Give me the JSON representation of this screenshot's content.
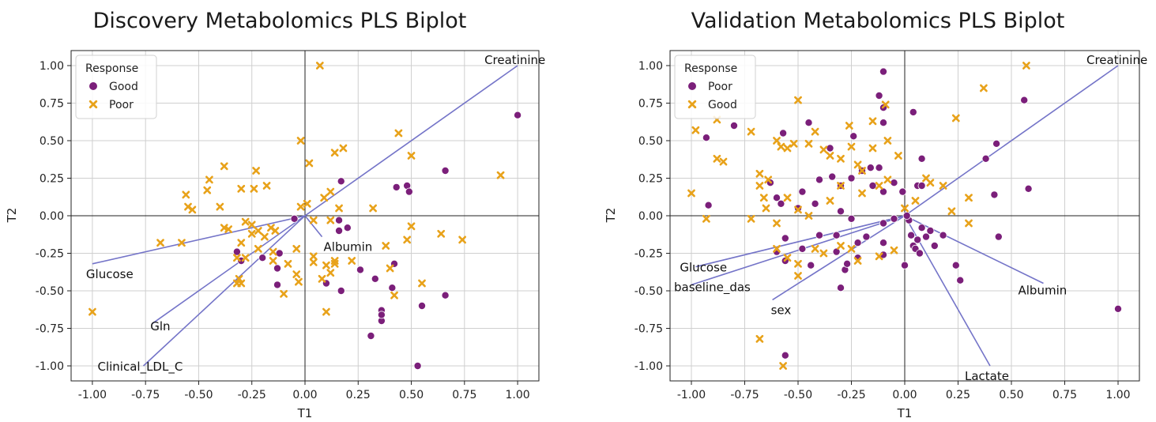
{
  "chart_data": [
    {
      "type": "scatter",
      "title": "Discovery Metabolomics PLS Biplot",
      "xlabel": "T1",
      "ylabel": "T2",
      "xlim": [
        -1.1,
        1.1
      ],
      "ylim": [
        -1.1,
        1.1
      ],
      "xticks": [
        "-1.00",
        "-0.75",
        "-0.50",
        "-0.25",
        "0.00",
        "0.25",
        "0.50",
        "0.75",
        "1.00"
      ],
      "yticks": [
        "1.00",
        "0.75",
        "0.50",
        "0.25",
        "0.00",
        "-0.25",
        "-0.50",
        "-0.75",
        "-1.00"
      ],
      "grid": true,
      "legend": {
        "title": "Response",
        "position": "top-left"
      },
      "series": [
        {
          "name": "Good",
          "color": "#7b1f7a",
          "marker": "circle",
          "points": [
            [
              1.0,
              0.67
            ],
            [
              0.66,
              0.3
            ],
            [
              0.43,
              0.19
            ],
            [
              0.48,
              0.2
            ],
            [
              0.49,
              0.16
            ],
            [
              0.17,
              0.23
            ],
            [
              0.16,
              -0.03
            ],
            [
              0.2,
              -0.08
            ],
            [
              0.16,
              -0.1
            ],
            [
              -0.05,
              -0.02
            ],
            [
              -0.12,
              -0.25
            ],
            [
              -0.32,
              -0.24
            ],
            [
              -0.3,
              -0.3
            ],
            [
              -0.2,
              -0.28
            ],
            [
              -0.13,
              -0.35
            ],
            [
              -0.13,
              -0.46
            ],
            [
              0.1,
              -0.45
            ],
            [
              0.17,
              -0.5
            ],
            [
              0.26,
              -0.36
            ],
            [
              0.33,
              -0.42
            ],
            [
              0.42,
              -0.32
            ],
            [
              0.41,
              -0.48
            ],
            [
              0.36,
              -0.63
            ],
            [
              0.36,
              -0.7
            ],
            [
              0.36,
              -0.66
            ],
            [
              0.31,
              -0.8
            ],
            [
              0.55,
              -0.6
            ],
            [
              0.53,
              -1.0
            ],
            [
              0.66,
              -0.53
            ]
          ]
        },
        {
          "name": "Poor",
          "color": "#e8a21a",
          "marker": "x",
          "points": [
            [
              0.07,
              1.0
            ],
            [
              0.92,
              0.27
            ],
            [
              0.44,
              0.55
            ],
            [
              0.5,
              0.4
            ],
            [
              -0.02,
              0.5
            ],
            [
              0.18,
              0.45
            ],
            [
              0.14,
              0.42
            ],
            [
              0.02,
              0.35
            ],
            [
              -0.38,
              0.33
            ],
            [
              -0.23,
              0.3
            ],
            [
              -0.18,
              0.2
            ],
            [
              -0.24,
              0.18
            ],
            [
              -0.56,
              0.14
            ],
            [
              -0.45,
              0.24
            ],
            [
              -0.46,
              0.17
            ],
            [
              -0.55,
              0.06
            ],
            [
              -0.53,
              0.04
            ],
            [
              -0.4,
              0.06
            ],
            [
              -0.3,
              0.18
            ],
            [
              0.09,
              0.12
            ],
            [
              0.12,
              0.16
            ],
            [
              0.01,
              0.08
            ],
            [
              -0.02,
              0.06
            ],
            [
              0.16,
              0.05
            ],
            [
              0.32,
              0.05
            ],
            [
              0.04,
              -0.03
            ],
            [
              0.12,
              -0.03
            ],
            [
              -0.28,
              -0.04
            ],
            [
              -0.38,
              -0.08
            ],
            [
              -0.36,
              -0.09
            ],
            [
              -0.25,
              -0.06
            ],
            [
              -0.22,
              -0.1
            ],
            [
              -0.25,
              -0.12
            ],
            [
              -0.19,
              -0.14
            ],
            [
              -0.14,
              -0.1
            ],
            [
              -0.16,
              -0.08
            ],
            [
              -0.3,
              -0.18
            ],
            [
              -0.22,
              -0.22
            ],
            [
              -0.28,
              -0.28
            ],
            [
              -0.32,
              -0.28
            ],
            [
              -0.58,
              -0.18
            ],
            [
              -0.68,
              -0.18
            ],
            [
              -0.15,
              -0.24
            ],
            [
              -0.15,
              -0.3
            ],
            [
              -0.08,
              -0.32
            ],
            [
              -0.04,
              -0.22
            ],
            [
              0.04,
              -0.27
            ],
            [
              0.04,
              -0.31
            ],
            [
              0.14,
              -0.3
            ],
            [
              0.14,
              -0.32
            ],
            [
              0.1,
              -0.33
            ],
            [
              0.22,
              -0.3
            ],
            [
              0.5,
              -0.07
            ],
            [
              0.48,
              -0.16
            ],
            [
              0.64,
              -0.12
            ],
            [
              0.74,
              -0.16
            ],
            [
              0.38,
              -0.2
            ],
            [
              0.4,
              -0.35
            ],
            [
              0.55,
              -0.45
            ],
            [
              0.42,
              -0.53
            ],
            [
              -0.31,
              -0.42
            ],
            [
              -0.3,
              -0.45
            ],
            [
              -0.32,
              -0.45
            ],
            [
              -0.1,
              -0.52
            ],
            [
              -0.04,
              -0.39
            ],
            [
              -0.03,
              -0.44
            ],
            [
              0.08,
              -0.42
            ],
            [
              0.12,
              -0.38
            ],
            [
              0.1,
              -0.64
            ],
            [
              -1.0,
              -0.64
            ]
          ]
        }
      ],
      "loadings": [
        {
          "label": "Creatinine",
          "x": 1.0,
          "y": 1.0
        },
        {
          "label": "Glucose",
          "x": -1.0,
          "y": -0.32
        },
        {
          "label": "Gln",
          "x": -0.72,
          "y": -0.72
        },
        {
          "label": "Clinical_LDL_C",
          "x": -0.76,
          "y": -1.0
        },
        {
          "label": "Albumin",
          "x": 0.08,
          "y": -0.14
        }
      ]
    },
    {
      "type": "scatter",
      "title": "Validation Metabolomics PLS Biplot",
      "xlabel": "T1",
      "ylabel": "T2",
      "xlim": [
        -1.1,
        1.1
      ],
      "ylim": [
        -1.1,
        1.1
      ],
      "xticks": [
        "-1.00",
        "-0.75",
        "-0.50",
        "-0.25",
        "0.00",
        "0.25",
        "0.50",
        "0.75",
        "1.00"
      ],
      "yticks": [
        "1.00",
        "0.75",
        "0.50",
        "0.25",
        "0.00",
        "-0.25",
        "-0.50",
        "-0.75",
        "-1.00"
      ],
      "grid": true,
      "legend": {
        "title": "Response",
        "position": "top-left"
      },
      "series": [
        {
          "name": "Poor",
          "color": "#7b1f7a",
          "marker": "circle",
          "points": [
            [
              -0.8,
              0.6
            ],
            [
              -0.93,
              0.52
            ],
            [
              -0.92,
              0.07
            ],
            [
              -0.57,
              0.55
            ],
            [
              -0.45,
              0.62
            ],
            [
              -0.35,
              0.45
            ],
            [
              -0.24,
              0.53
            ],
            [
              -0.1,
              0.96
            ],
            [
              -0.12,
              0.8
            ],
            [
              -0.1,
              0.72
            ],
            [
              -0.1,
              0.62
            ],
            [
              -0.16,
              0.32
            ],
            [
              -0.12,
              0.32
            ],
            [
              -0.2,
              0.3
            ],
            [
              -0.25,
              0.25
            ],
            [
              -0.34,
              0.26
            ],
            [
              -0.4,
              0.24
            ],
            [
              -0.3,
              0.2
            ],
            [
              -0.15,
              0.2
            ],
            [
              -0.1,
              0.16
            ],
            [
              -0.05,
              0.22
            ],
            [
              -0.01,
              0.16
            ],
            [
              0.06,
              0.2
            ],
            [
              0.08,
              0.2
            ],
            [
              0.08,
              0.38
            ],
            [
              0.04,
              0.69
            ],
            [
              -0.63,
              0.22
            ],
            [
              -0.6,
              0.12
            ],
            [
              -0.58,
              0.08
            ],
            [
              -0.5,
              0.05
            ],
            [
              -0.48,
              0.16
            ],
            [
              -0.42,
              0.08
            ],
            [
              -0.3,
              0.03
            ],
            [
              -0.25,
              -0.02
            ],
            [
              -0.1,
              -0.05
            ],
            [
              -0.05,
              -0.02
            ],
            [
              0.02,
              -0.03
            ],
            [
              0.08,
              -0.08
            ],
            [
              0.12,
              -0.1
            ],
            [
              0.1,
              -0.14
            ],
            [
              0.03,
              -0.13
            ],
            [
              0.06,
              -0.16
            ],
            [
              0.04,
              -0.2
            ],
            [
              0.05,
              -0.22
            ],
            [
              -0.1,
              -0.18
            ],
            [
              -0.18,
              -0.14
            ],
            [
              -0.22,
              -0.18
            ],
            [
              -0.32,
              -0.13
            ],
            [
              -0.4,
              -0.13
            ],
            [
              -0.48,
              -0.22
            ],
            [
              -0.56,
              -0.15
            ],
            [
              -0.6,
              -0.24
            ],
            [
              -0.56,
              -0.3
            ],
            [
              -0.44,
              -0.33
            ],
            [
              -0.32,
              -0.24
            ],
            [
              -0.28,
              -0.36
            ],
            [
              -0.27,
              -0.32
            ],
            [
              -0.3,
              -0.48
            ],
            [
              -0.22,
              -0.28
            ],
            [
              -0.1,
              -0.26
            ],
            [
              0.0,
              -0.33
            ],
            [
              0.07,
              -0.25
            ],
            [
              0.14,
              -0.2
            ],
            [
              0.18,
              -0.13
            ],
            [
              0.24,
              -0.33
            ],
            [
              0.26,
              -0.43
            ],
            [
              0.38,
              0.38
            ],
            [
              0.43,
              0.48
            ],
            [
              0.42,
              0.14
            ],
            [
              0.58,
              0.18
            ],
            [
              0.56,
              0.77
            ],
            [
              0.44,
              -0.14
            ],
            [
              -0.56,
              -0.93
            ],
            [
              1.0,
              -0.62
            ],
            [
              0.01,
              0.0
            ]
          ]
        },
        {
          "name": "Good",
          "color": "#e8a21a",
          "marker": "x",
          "points": [
            [
              0.57,
              1.0
            ],
            [
              0.37,
              0.85
            ],
            [
              0.24,
              0.65
            ],
            [
              -0.98,
              0.57
            ],
            [
              -1.0,
              0.15
            ],
            [
              -0.93,
              -0.02
            ],
            [
              -0.88,
              0.38
            ],
            [
              -0.85,
              0.36
            ],
            [
              -0.88,
              0.64
            ],
            [
              -0.72,
              0.56
            ],
            [
              -0.68,
              0.28
            ],
            [
              -0.68,
              0.2
            ],
            [
              -0.64,
              0.24
            ],
            [
              -0.66,
              0.12
            ],
            [
              -0.65,
              0.05
            ],
            [
              -0.6,
              0.5
            ],
            [
              -0.58,
              0.46
            ],
            [
              -0.55,
              0.45
            ],
            [
              -0.52,
              0.48
            ],
            [
              -0.5,
              0.77
            ],
            [
              -0.45,
              0.48
            ],
            [
              -0.42,
              0.56
            ],
            [
              -0.38,
              0.44
            ],
            [
              -0.35,
              0.4
            ],
            [
              -0.3,
              0.38
            ],
            [
              -0.26,
              0.6
            ],
            [
              -0.25,
              0.46
            ],
            [
              -0.22,
              0.34
            ],
            [
              -0.2,
              0.3
            ],
            [
              -0.15,
              0.63
            ],
            [
              -0.15,
              0.45
            ],
            [
              -0.08,
              0.5
            ],
            [
              -0.09,
              0.74
            ],
            [
              -0.03,
              0.4
            ],
            [
              -0.55,
              0.12
            ],
            [
              -0.5,
              0.04
            ],
            [
              -0.45,
              0.0
            ],
            [
              -0.35,
              0.1
            ],
            [
              -0.3,
              0.2
            ],
            [
              -0.2,
              0.15
            ],
            [
              -0.12,
              0.2
            ],
            [
              -0.08,
              0.24
            ],
            [
              0.0,
              0.05
            ],
            [
              0.05,
              0.1
            ],
            [
              0.1,
              0.25
            ],
            [
              0.12,
              0.22
            ],
            [
              0.18,
              0.2
            ],
            [
              0.3,
              0.12
            ],
            [
              0.22,
              0.03
            ],
            [
              0.3,
              -0.05
            ],
            [
              -0.6,
              -0.22
            ],
            [
              -0.55,
              -0.28
            ],
            [
              -0.5,
              -0.32
            ],
            [
              -0.42,
              -0.22
            ],
            [
              -0.38,
              -0.25
            ],
            [
              -0.3,
              -0.2
            ],
            [
              -0.25,
              -0.22
            ],
            [
              -0.22,
              -0.3
            ],
            [
              -0.12,
              -0.27
            ],
            [
              -0.05,
              -0.23
            ],
            [
              -0.5,
              -0.4
            ],
            [
              -0.6,
              -0.05
            ],
            [
              -0.72,
              -0.02
            ],
            [
              -0.68,
              -0.82
            ],
            [
              -0.57,
              -1.0
            ]
          ]
        }
      ],
      "loadings": [
        {
          "label": "Creatinine",
          "x": 1.0,
          "y": 1.0
        },
        {
          "label": "Glucose",
          "x": -0.98,
          "y": -0.34
        },
        {
          "label": "baseline_das",
          "x": -1.0,
          "y": -0.46
        },
        {
          "label": "sex",
          "x": -0.62,
          "y": -0.56
        },
        {
          "label": "Albumin",
          "x": 0.65,
          "y": -0.45
        },
        {
          "label": "Lactate",
          "x": 0.4,
          "y": -1.0
        }
      ]
    }
  ]
}
